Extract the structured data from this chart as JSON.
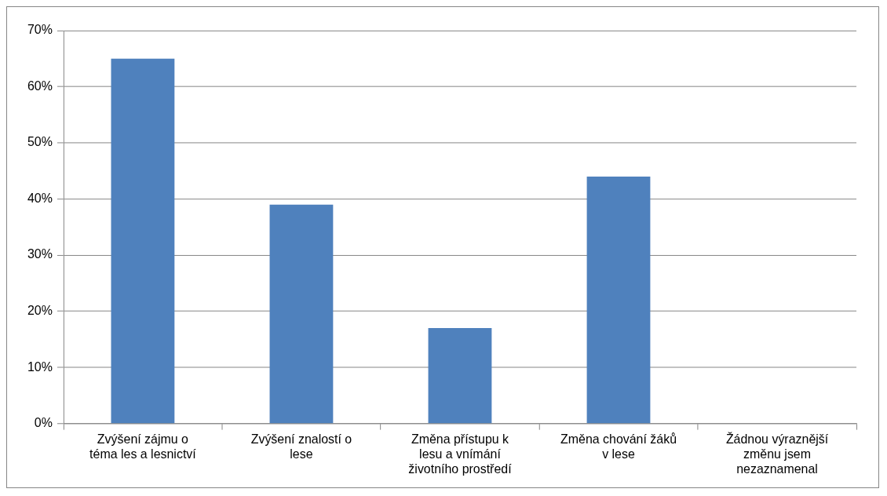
{
  "chart_data": {
    "type": "bar",
    "categories": [
      "Zvýšení zájmu o téma les a lesnictví",
      "Zvýšení znalostí o lese",
      "Změna přístupu k lesu a vnímání životního prostředí",
      "Změna chování žáků v lese",
      "Žádnou výraznější změnu jsem nezaznamenal"
    ],
    "values": [
      65,
      39,
      17,
      44,
      0
    ],
    "color": "#4f81bd",
    "ylim": [
      0,
      70
    ],
    "yticks": [
      {
        "value": 0,
        "label": "0%"
      },
      {
        "value": 10,
        "label": "10%"
      },
      {
        "value": 20,
        "label": "20%"
      },
      {
        "value": 30,
        "label": "30%"
      },
      {
        "value": 40,
        "label": "40%"
      },
      {
        "value": 50,
        "label": "50%"
      },
      {
        "value": 60,
        "label": "60%"
      },
      {
        "value": 70,
        "label": "70%"
      }
    ],
    "grid": "y",
    "legend": false
  }
}
